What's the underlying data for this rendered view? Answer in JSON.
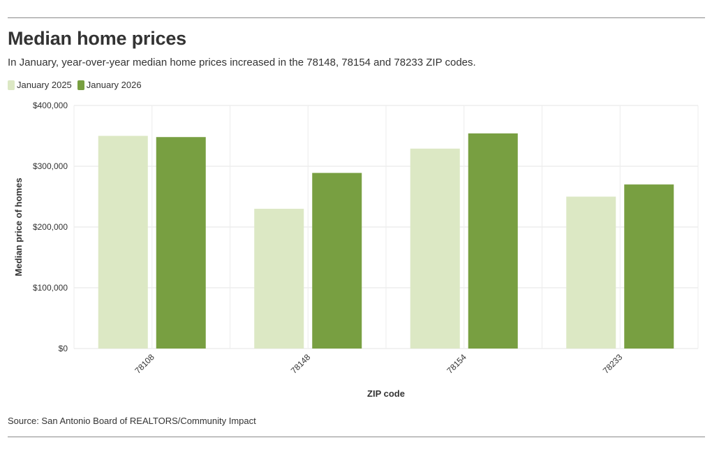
{
  "header": {
    "title": "Median home prices",
    "subtitle": "In January, year-over-year median home prices increased in the 78148, 78154 and 78233 ZIP codes."
  },
  "legend": [
    {
      "label": "January 2025",
      "color": "#dce8c4"
    },
    {
      "label": "January 2026",
      "color": "#789f41"
    }
  ],
  "chart_data": {
    "type": "bar",
    "title": "Median home prices",
    "xlabel": "ZIP code",
    "ylabel": "Median price of homes",
    "categories": [
      "78108",
      "78148",
      "78154",
      "78233"
    ],
    "series": [
      {
        "name": "January 2025",
        "color": "#dce8c4",
        "values": [
          350000,
          230000,
          329000,
          250000
        ]
      },
      {
        "name": "January 2026",
        "color": "#789f41",
        "values": [
          348000,
          289000,
          354000,
          270000
        ]
      }
    ],
    "ylim": [
      0,
      400000
    ],
    "yticks": [
      0,
      100000,
      200000,
      300000,
      400000
    ],
    "ytick_labels": [
      "$0",
      "$100,000",
      "$200,000",
      "$300,000",
      "$400,000"
    ],
    "grid": true,
    "legend_position": "top-left"
  },
  "footer": {
    "source": "Source: San Antonio Board of REALTORS/Community Impact"
  }
}
